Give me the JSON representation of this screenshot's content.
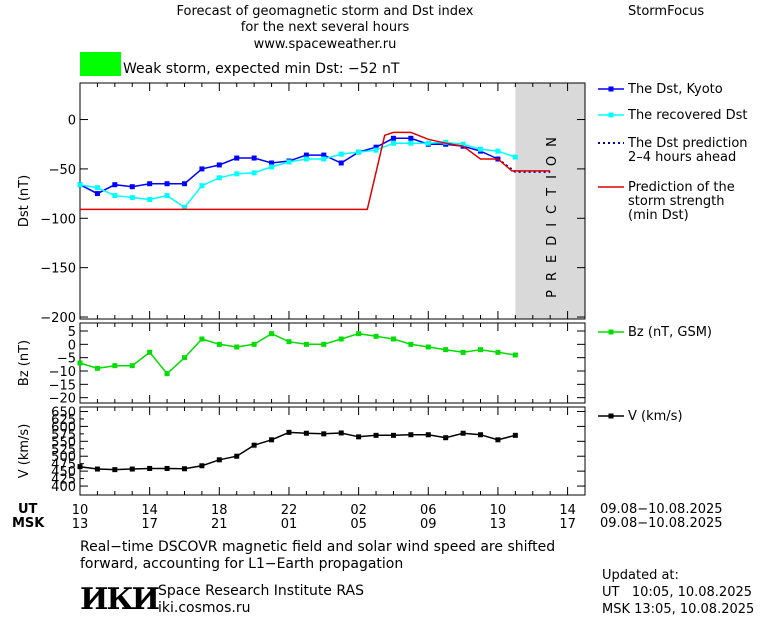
{
  "header": {
    "title_lines": [
      "Forecast of geomagnetic storm and Dst index",
      "for the next several hours",
      "www.spaceweather.ru"
    ],
    "brand": "StormFocus",
    "status_color": "#00ff00",
    "status_text": "Weak storm, expected min Dst: −52 nT"
  },
  "prediction_band": {
    "label": "PREDICTION",
    "color": "#d9d9d9"
  },
  "chart_data": [
    {
      "type": "line",
      "ylabel": "Dst (nT)",
      "ylim": [
        -202,
        37
      ],
      "yticks": [
        0,
        -50,
        -100,
        -150,
        -200
      ],
      "ytick_labels": [
        "0",
        "−50",
        "−100",
        "−150",
        "−200"
      ],
      "series": [
        {
          "name": "The Dst, Kyoto",
          "color": "#0000ff",
          "marker": "square",
          "x": [
            0,
            1,
            2,
            3,
            4,
            5,
            6,
            7,
            8,
            9,
            10,
            11,
            12,
            13,
            14,
            15,
            16,
            17,
            18,
            19,
            20,
            21,
            22,
            23,
            24,
            25
          ],
          "y": [
            -66,
            -75,
            -66,
            -68,
            -65,
            -65,
            -65,
            -50,
            -46,
            -39,
            -39,
            -44,
            -42,
            -36,
            -36,
            -44,
            -33,
            -28,
            -19,
            -19,
            -25,
            -25,
            -27,
            -32,
            -40,
            null
          ]
        },
        {
          "name": "The recovered Dst",
          "color": "#00ffff",
          "marker": "square",
          "x": [
            0,
            1,
            2,
            3,
            4,
            5,
            6,
            7,
            8,
            9,
            10,
            11,
            12,
            13,
            14,
            15,
            16,
            17,
            18,
            19,
            20,
            21,
            22,
            23,
            24,
            25
          ],
          "y": [
            -66,
            -69,
            -77,
            -79,
            -81,
            -77,
            -89,
            -67,
            -59,
            -55,
            -54,
            -48,
            -43,
            -40,
            -40,
            -35,
            -33,
            -31,
            -24,
            -24,
            -24,
            -23,
            -25,
            -30,
            -32,
            -38
          ]
        },
        {
          "name": "The Dst prediction",
          "name2": "2–4 hours ahead",
          "color": "#0000aa",
          "style": "dotted",
          "x": [
            24,
            25,
            26,
            27
          ],
          "y": [
            -40,
            -53,
            -53,
            -53
          ]
        },
        {
          "name": "Prediction of the",
          "name2": "storm strength",
          "name3": "(min Dst)",
          "color": "#dd0000",
          "style": "step",
          "x": [
            0,
            16.5,
            17.5,
            18,
            19,
            20,
            21,
            22,
            23,
            24,
            24.8,
            25,
            26,
            27
          ],
          "y": [
            -91,
            -91,
            -16,
            -13,
            -13,
            -20,
            -24,
            -27,
            -40,
            -40,
            -52,
            -52,
            -52,
            -52
          ]
        }
      ]
    },
    {
      "type": "line",
      "ylabel": "Bz (nT)",
      "ylim": [
        -22,
        8
      ],
      "yticks": [
        5,
        0,
        -5,
        -10,
        -15,
        -20
      ],
      "ytick_labels": [
        "5",
        "0",
        "−5",
        "−10",
        "−15",
        "−20"
      ],
      "series": [
        {
          "name": "Bz (nT, GSM)",
          "color": "#00dd00",
          "marker": "square",
          "x": [
            0,
            1,
            2,
            3,
            4,
            5,
            6,
            7,
            8,
            9,
            10,
            11,
            12,
            13,
            14,
            15,
            16,
            17,
            18,
            19,
            20,
            21,
            22,
            23,
            24,
            25
          ],
          "y": [
            -7,
            -9,
            -8,
            -8,
            -3,
            -11,
            -5,
            2,
            0,
            -1,
            0,
            4,
            1,
            0,
            0,
            2,
            4,
            3,
            2,
            0,
            -1,
            -2,
            -3,
            -2,
            -3,
            -4
          ]
        }
      ]
    },
    {
      "type": "line",
      "ylabel": "V (km/s)",
      "ylim": [
        370,
        665
      ],
      "yticks": [
        650,
        600,
        550,
        500,
        450,
        400
      ],
      "ytick_labels": [
        "650",
        "600",
        "550",
        "500",
        "450",
        "400"
      ],
      "minor_yticks": [
        625,
        575,
        525,
        475,
        425
      ],
      "minor_ytick_labels": [
        "625",
        "575",
        "525",
        "475",
        "425"
      ],
      "series": [
        {
          "name": "V (km/s)",
          "color": "#000000",
          "marker": "square",
          "x": [
            0,
            1,
            2,
            3,
            4,
            5,
            6,
            7,
            8,
            9,
            10,
            11,
            12,
            13,
            14,
            15,
            16,
            17,
            18,
            19,
            20,
            21,
            22,
            23,
            24,
            25
          ],
          "y": [
            465,
            457,
            455,
            457,
            459,
            459,
            458,
            468,
            488,
            500,
            537,
            555,
            580,
            577,
            575,
            578,
            565,
            570,
            570,
            572,
            572,
            562,
            577,
            572,
            555,
            570
          ]
        }
      ]
    }
  ],
  "time_axis": {
    "x_range": [
      0,
      29
    ],
    "tick_positions": [
      0,
      4,
      8,
      12,
      16,
      20,
      24,
      28
    ],
    "ut_label": "UT",
    "ut_ticks": [
      "10",
      "14",
      "18",
      "22",
      "02",
      "06",
      "10",
      "14"
    ],
    "msk_label": "MSK",
    "msk_ticks": [
      "13",
      "17",
      "21",
      "01",
      "05",
      "09",
      "13",
      "17"
    ],
    "date_range_ut": "09.08−10.08.2025",
    "date_range_msk": "09.08−10.08.2025"
  },
  "footer": {
    "note_lines": [
      "Real−time DSCOVR magnetic field and solar wind speed are shifted",
      "forward, accounting for L1−Earth propagation"
    ],
    "logo_text": "ИКИ",
    "institute": "Space Research Institute RAS",
    "site": "iki.cosmos.ru",
    "updated_label": "Updated at:",
    "updated_ut": "UT   10:05, 10.08.2025",
    "updated_msk": "MSK 13:05, 10.08.2025"
  }
}
